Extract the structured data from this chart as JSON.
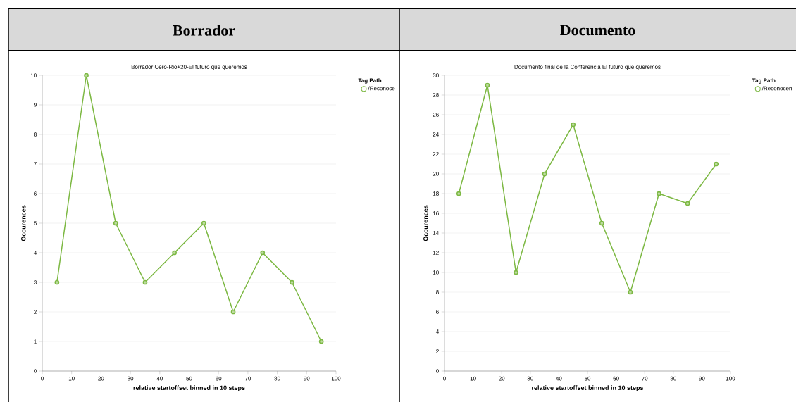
{
  "chart_data": [
    {
      "type": "line",
      "title": "Borrador",
      "subtitle": "Borrador Cero-Rio+20-El futuro que queremos",
      "xlabel": "relative startoffset binned in 10 steps",
      "ylabel": "Occurences",
      "legend_title": "Tag Path",
      "x": [
        5,
        15,
        25,
        35,
        45,
        55,
        65,
        75,
        85,
        95
      ],
      "series": [
        {
          "name": "/Reconoce",
          "color": "#7cb842",
          "values": [
            3,
            10,
            5,
            3,
            4,
            5,
            2,
            4,
            3,
            1
          ]
        }
      ],
      "xlim": [
        0,
        100
      ],
      "xticks": [
        0,
        10,
        20,
        30,
        40,
        50,
        60,
        70,
        80,
        90,
        100
      ],
      "ylim": [
        0,
        10
      ],
      "yticks": [
        0,
        1,
        2,
        3,
        4,
        5,
        6,
        7,
        8,
        9,
        10
      ],
      "grid": "y",
      "legend": "top right",
      "marker": "circle",
      "line_style": "solid"
    },
    {
      "type": "line",
      "title": "Documento",
      "subtitle": "Documento final de la Conferencia  El futuro que queremos",
      "xlabel": "relative startoffset binned in 10 steps",
      "ylabel": "Occurences",
      "legend_title": "Tag Path",
      "x": [
        5,
        15,
        25,
        35,
        45,
        55,
        65,
        75,
        85,
        95
      ],
      "series": [
        {
          "name": "/Reconocen",
          "color": "#7cb842",
          "values": [
            18,
            29,
            10,
            20,
            25,
            15,
            8,
            18,
            17,
            21
          ]
        }
      ],
      "xlim": [
        0,
        100
      ],
      "xticks": [
        0,
        10,
        20,
        30,
        40,
        50,
        60,
        70,
        80,
        90,
        100
      ],
      "ylim": [
        0,
        30
      ],
      "yticks": [
        0,
        2,
        4,
        6,
        8,
        10,
        12,
        14,
        16,
        18,
        20,
        22,
        24,
        26,
        28,
        30
      ],
      "grid": "y",
      "legend": "top right",
      "marker": "circle",
      "line_style": "solid"
    }
  ]
}
